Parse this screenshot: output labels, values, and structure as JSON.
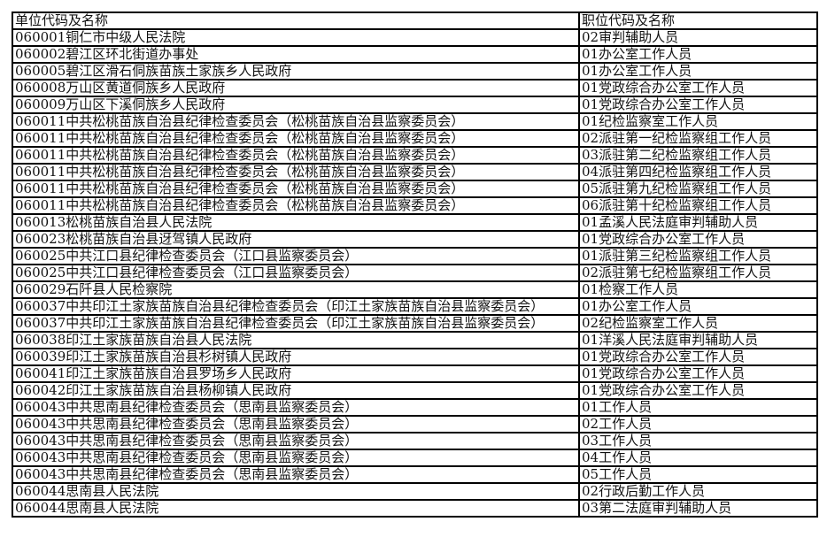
{
  "header": {
    "unit": "单位代码及名称",
    "position": "职位代码及名称"
  },
  "rows": [
    {
      "unit": "060001铜仁市中级人民法院",
      "position": "02审判辅助人员"
    },
    {
      "unit": "060002碧江区环北街道办事处",
      "position": "01办公室工作人员"
    },
    {
      "unit": "060005碧江区滑石侗族苗族土家族乡人民政府",
      "position": "01办公室工作人员"
    },
    {
      "unit": "060008万山区黄道侗族乡人民政府",
      "position": "01党政综合办公室工作人员"
    },
    {
      "unit": "060009万山区下溪侗族乡人民政府",
      "position": "01党政综合办公室工作人员"
    },
    {
      "unit": "060011中共松桃苗族自治县纪律检查委员会（松桃苗族自治县监察委员会）",
      "position": "01纪检监察室工作人员"
    },
    {
      "unit": "060011中共松桃苗族自治县纪律检查委员会（松桃苗族自治县监察委员会）",
      "position": "02派驻第一纪检监察组工作人员"
    },
    {
      "unit": "060011中共松桃苗族自治县纪律检查委员会（松桃苗族自治县监察委员会）",
      "position": "03派驻第二纪检监察组工作人员"
    },
    {
      "unit": "060011中共松桃苗族自治县纪律检查委员会（松桃苗族自治县监察委员会）",
      "position": "04派驻第四纪检监察组工作人员"
    },
    {
      "unit": "060011中共松桃苗族自治县纪律检查委员会（松桃苗族自治县监察委员会）",
      "position": "05派驻第九纪检监察组工作人员"
    },
    {
      "unit": "060011中共松桃苗族自治县纪律检查委员会（松桃苗族自治县监察委员会）",
      "position": "06派驻第十纪检监察组工作人员"
    },
    {
      "unit": "060013松桃苗族自治县人民法院",
      "position": "01孟溪人民法庭审判辅助人员"
    },
    {
      "unit": "060023松桃苗族自治县迓驾镇人民政府",
      "position": "01党政综合办公室工作人员"
    },
    {
      "unit": "060025中共江口县纪律检查委员会（江口县监察委员会）",
      "position": "01派驻第三纪检监察组工作人员"
    },
    {
      "unit": "060025中共江口县纪律检查委员会（江口县监察委员会）",
      "position": "02派驻第七纪检监察组工作人员"
    },
    {
      "unit": "060029石阡县人民检察院",
      "position": "01检察工作人员"
    },
    {
      "unit": "060037中共印江土家族苗族自治县纪律检查委员会（印江土家族苗族自治县监察委员会）",
      "position": "01办公室工作人员"
    },
    {
      "unit": "060037中共印江土家族苗族自治县纪律检查委员会（印江土家族苗族自治县监察委员会）",
      "position": "02纪检监察室工作人员"
    },
    {
      "unit": "060038印江土家族苗族自治县人民法院",
      "position": "01洋溪人民法庭审判辅助人员"
    },
    {
      "unit": "060039印江土家族苗族自治县杉树镇人民政府",
      "position": "01党政综合办公室工作人员"
    },
    {
      "unit": "060041印江土家族苗族自治县罗场乡人民政府",
      "position": "01党政综合办公室工作人员"
    },
    {
      "unit": "060042印江土家族苗族自治县杨柳镇人民政府",
      "position": "01党政综合办公室工作人员"
    },
    {
      "unit": "060043中共思南县纪律检查委员会（思南县监察委员会）",
      "position": "01工作人员"
    },
    {
      "unit": "060043中共思南县纪律检查委员会（思南县监察委员会）",
      "position": "02工作人员"
    },
    {
      "unit": "060043中共思南县纪律检查委员会（思南县监察委员会）",
      "position": "03工作人员"
    },
    {
      "unit": "060043中共思南县纪律检查委员会（思南县监察委员会）",
      "position": "04工作人员"
    },
    {
      "unit": "060043中共思南县纪律检查委员会（思南县监察委员会）",
      "position": "05工作人员"
    },
    {
      "unit": "060044思南县人民法院",
      "position": "02行政后勤工作人员"
    },
    {
      "unit": "060044思南县人民法院",
      "position": "03第二法庭审判辅助人员"
    }
  ]
}
